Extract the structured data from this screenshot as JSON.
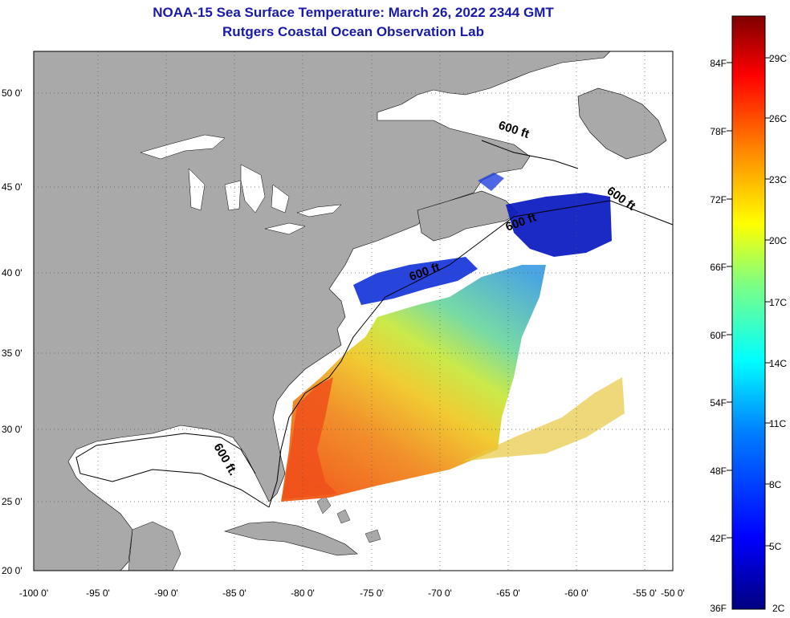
{
  "title_line1": "NOAA-15 Sea Surface Temperature:  March 26, 2022 2344 GMT",
  "title_line2": "Rutgers Coastal Ocean Observation Lab",
  "lat_labels": [
    "50 0'",
    "45 0'",
    "40 0'",
    "35 0'",
    "30 0'",
    "25 0'",
    "20 0'"
  ],
  "lon_labels": [
    "-100 0'",
    "-95 0'",
    "-90 0'",
    "-85 0'",
    "-80 0'",
    "-75 0'",
    "-70 0'",
    "-65 0'",
    "-60 0'",
    "-55 0'",
    "-50 0'"
  ],
  "contour_label": "600 ft",
  "contour_label_gulf": "600 ft.",
  "colorbar_f_labels": [
    "84F",
    "78F",
    "72F",
    "66F",
    "60F",
    "54F",
    "48F",
    "42F",
    "36F"
  ],
  "colorbar_c_labels": [
    "29C",
    "26C",
    "23C",
    "20C",
    "17C",
    "14C",
    "11C",
    "8C",
    "5C",
    "2C"
  ],
  "colors": {
    "land": "#a9a9a9",
    "title": "#1a1aa8",
    "ocean_nodata": "#ffffff"
  }
}
